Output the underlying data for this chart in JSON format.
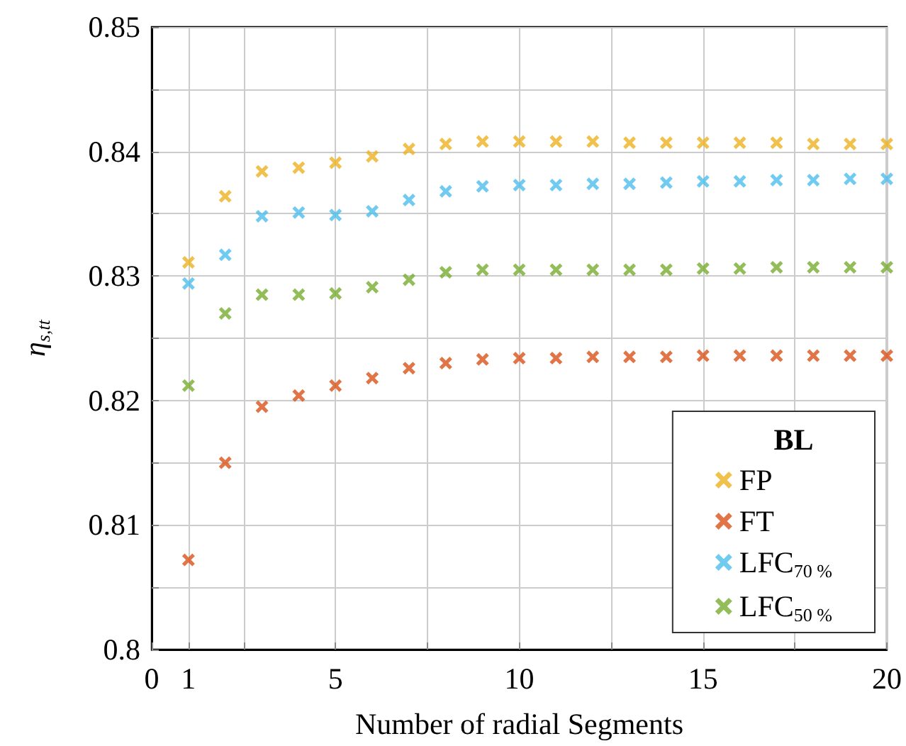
{
  "chart_data": {
    "type": "scatter",
    "xlabel": "Number of radial Segments",
    "ylabel": "η$_{s,tt}$",
    "legend_title": "BL",
    "x": [
      1,
      2,
      3,
      4,
      5,
      6,
      7,
      8,
      9,
      10,
      11,
      12,
      13,
      14,
      15,
      16,
      17,
      18,
      19,
      20
    ],
    "series": [
      {
        "name": "FP",
        "color": "#edb120",
        "values": [
          0.8311,
          0.8364,
          0.8384,
          0.8387,
          0.8391,
          0.8396,
          0.8402,
          0.8406,
          0.8408,
          0.8408,
          0.8408,
          0.8408,
          0.8407,
          0.8407,
          0.8407,
          0.8407,
          0.8407,
          0.8406,
          0.8406,
          0.8406
        ]
      },
      {
        "name": "FT",
        "color": "#d95319",
        "values": [
          0.8072,
          0.815,
          0.8195,
          0.8204,
          0.8212,
          0.8218,
          0.8226,
          0.823,
          0.8233,
          0.8234,
          0.8234,
          0.8235,
          0.8235,
          0.8235,
          0.8236,
          0.8236,
          0.8236,
          0.8236,
          0.8236,
          0.8236
        ]
      },
      {
        "name": "LFC$_{70 %}$",
        "color": "#4dbeee",
        "values": [
          0.8294,
          0.8317,
          0.8348,
          0.8351,
          0.8349,
          0.8352,
          0.8361,
          0.8368,
          0.8372,
          0.8373,
          0.8373,
          0.8374,
          0.8374,
          0.8375,
          0.8376,
          0.8376,
          0.8377,
          0.8377,
          0.8378,
          0.8378
        ]
      },
      {
        "name": "LFC$_{50 %}$",
        "color": "#77ac30",
        "values": [
          0.8212,
          0.827,
          0.8285,
          0.8285,
          0.8286,
          0.8291,
          0.8297,
          0.8303,
          0.8305,
          0.8305,
          0.8305,
          0.8305,
          0.8305,
          0.8305,
          0.8306,
          0.8306,
          0.8307,
          0.8307,
          0.8307,
          0.8307
        ]
      }
    ],
    "xlim": [
      0,
      20
    ],
    "xticks": [
      0,
      1,
      {
        "value": 2.5,
        "label": null
      },
      5,
      {
        "value": 7.5,
        "label": null
      },
      10,
      {
        "value": 12.5,
        "label": null
      },
      15,
      {
        "value": 17.5,
        "label": null
      },
      20
    ],
    "ylim": [
      0.8,
      0.85
    ],
    "yticks": [
      "0.8",
      {
        "value": 0.805,
        "label": null
      },
      0.81,
      {
        "value": 0.815,
        "label": null
      },
      0.82,
      {
        "value": 0.825,
        "label": null
      },
      0.83,
      {
        "value": 0.835,
        "label": null
      },
      0.84,
      {
        "value": 0.845,
        "label": null
      },
      0.85
    ],
    "grid": true,
    "legend": "bottom right",
    "marker": "cross"
  }
}
